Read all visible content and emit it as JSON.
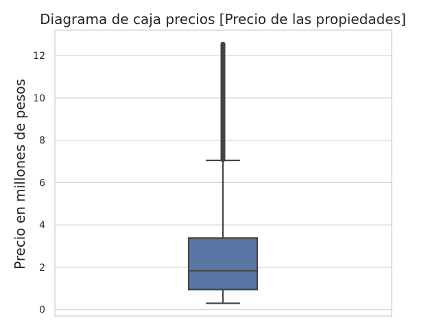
{
  "chart_data": {
    "type": "box",
    "title": "Diagrama de caja precios [Precio de las propiedades]",
    "xlabel": "",
    "ylabel": "Precio en millones de pesos",
    "ylim": [
      -0.3,
      13.2
    ],
    "yticks": [
      0,
      2,
      4,
      6,
      8,
      10,
      12
    ],
    "grid": true,
    "box": {
      "min": 0.3,
      "q1": 0.95,
      "median": 1.83,
      "q3": 3.38,
      "max": 7.05,
      "outliers_range": [
        7.05,
        12.55
      ]
    },
    "colors": {
      "box_fill": "#5875a4",
      "line": "#444444",
      "grid": "#cccccc",
      "frame": "#cccccc"
    }
  }
}
